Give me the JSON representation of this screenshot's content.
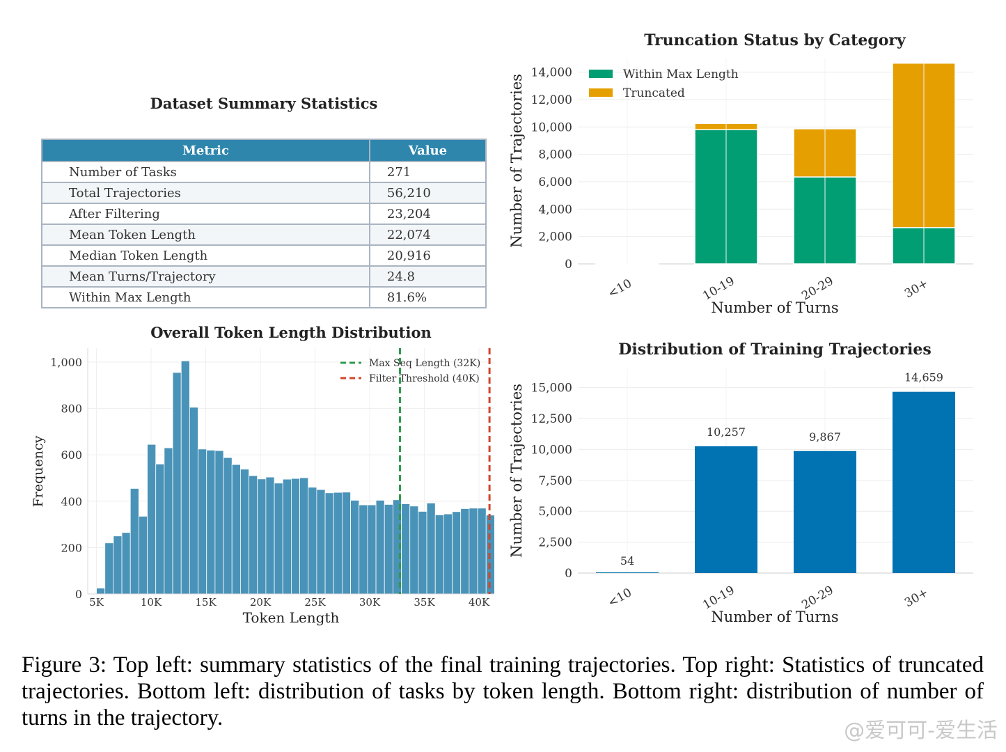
{
  "summary_table": {
    "title": "Dataset Summary Statistics",
    "headers": [
      "Metric",
      "Value"
    ],
    "rows": [
      [
        "Number of Tasks",
        "271"
      ],
      [
        "Total Trajectories",
        "56,210"
      ],
      [
        "After Filtering",
        "23,204"
      ],
      [
        "Mean Token Length",
        "22,074"
      ],
      [
        "Median Token Length",
        "20,916"
      ],
      [
        "Mean Turns/Trajectory",
        "24.8"
      ],
      [
        "Within Max Length",
        "81.6%"
      ]
    ]
  },
  "chart_data": [
    {
      "id": "truncation",
      "type": "bar",
      "stacked": true,
      "title": "Truncation Status by Category",
      "xlabel": "Number of Turns",
      "ylabel": "Number of Trajectories",
      "categories": [
        "<10",
        "10-19",
        "20-29",
        "30+"
      ],
      "series": [
        {
          "name": "Within Max Length",
          "color": "#029e73",
          "values": [
            40,
            9800,
            6350,
            2650
          ]
        },
        {
          "name": "Truncated",
          "color": "#e69f00",
          "values": [
            14,
            457,
            3517,
            12009
          ]
        }
      ],
      "ylim": [
        0,
        15000
      ],
      "yticks": [
        0,
        2000,
        4000,
        6000,
        8000,
        10000,
        12000,
        14000
      ],
      "ytick_labels": [
        "0",
        "2,000",
        "4,000",
        "6,000",
        "8,000",
        "10,000",
        "12,000",
        "14,000"
      ],
      "legend": "top-left",
      "grid": true
    },
    {
      "id": "histogram",
      "type": "bar",
      "title": "Overall Token Length Distribution",
      "xlabel": "Token Length",
      "ylabel": "Frequency",
      "bin_start": 5000,
      "bin_width": 775,
      "values": [
        25,
        220,
        250,
        265,
        455,
        335,
        645,
        560,
        630,
        955,
        1005,
        805,
        625,
        620,
        618,
        588,
        558,
        538,
        510,
        496,
        504,
        478,
        495,
        498,
        501,
        460,
        450,
        436,
        438,
        439,
        404,
        384,
        384,
        404,
        386,
        406,
        389,
        379,
        356,
        392,
        341,
        345,
        355,
        368,
        370,
        370,
        340
      ],
      "xlim": [
        4200,
        41400
      ],
      "ylim": [
        0,
        1060
      ],
      "xticks": [
        5000,
        10000,
        15000,
        20000,
        25000,
        30000,
        35000,
        40000
      ],
      "xtick_labels": [
        "5K",
        "10K",
        "15K",
        "20K",
        "25K",
        "30K",
        "35K",
        "40K"
      ],
      "yticks": [
        0,
        200,
        400,
        600,
        800,
        1000
      ],
      "ytick_labels": [
        "0",
        "200",
        "400",
        "600",
        "800",
        "1,000"
      ],
      "vlines": [
        {
          "name": "Max Seq Length (32K)",
          "x": 32768,
          "color": "#2e9a4e"
        },
        {
          "name": "Filter Threshold (40K)",
          "x": 40960,
          "color": "#d0442a"
        }
      ],
      "bar_color": "#4a93b8",
      "legend": "top-right",
      "grid": true
    },
    {
      "id": "distribution",
      "type": "bar",
      "title": "Distribution of Training Trajectories",
      "xlabel": "Number of Turns",
      "ylabel": "Number of Trajectories",
      "categories": [
        "<10",
        "10-19",
        "20-29",
        "30+"
      ],
      "values": [
        54,
        10257,
        9867,
        14659
      ],
      "data_labels": [
        "54",
        "10,257",
        "9,867",
        "14,659"
      ],
      "ylim": [
        0,
        16500
      ],
      "yticks": [
        0,
        2500,
        5000,
        7500,
        10000,
        12500,
        15000
      ],
      "ytick_labels": [
        "0",
        "2,500",
        "5,000",
        "7,500",
        "10,000",
        "12,500",
        "15,000"
      ],
      "bar_color": "#0173b2",
      "grid": true
    }
  ],
  "caption": "Figure 3: Top left: summary statistics of the final training trajectories. Top right: Statistics of truncated trajectories. Bottom left: distribution of tasks by token length. Bottom right: distribution of number of turns in the trajectory.",
  "watermark": "@爱可可-爱生活"
}
